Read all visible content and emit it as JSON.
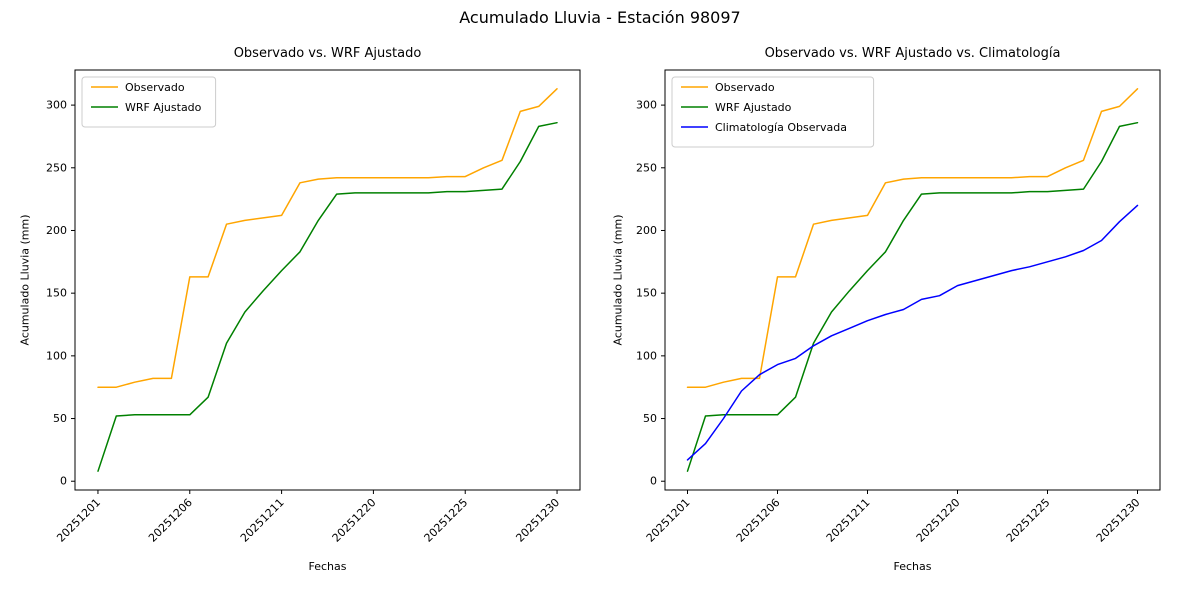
{
  "figure": {
    "title": "Acumulado Lluvia - Estación 98097",
    "background": "#ffffff"
  },
  "chart_data": [
    {
      "type": "line",
      "title": "Observado vs. WRF Ajustado",
      "xlabel": "Fechas",
      "ylabel": "Acumulado Lluvia (mm)",
      "ylim": [
        -7,
        328
      ],
      "yticks": [
        0,
        50,
        100,
        150,
        200,
        250,
        300
      ],
      "x_tick_labels": [
        "20251201",
        "20251206",
        "20251211",
        "20251220",
        "20251225",
        "20251230"
      ],
      "x_tick_indices": [
        0,
        5,
        10,
        15,
        20,
        25
      ],
      "n_points": 26,
      "x_margin": 1.25,
      "grid": false,
      "legend_position": "upper-left",
      "series": [
        {
          "name": "Observado",
          "color": "#FFA500",
          "values": [
            75,
            75,
            79,
            82,
            82,
            163,
            163,
            205,
            208,
            210,
            212,
            238,
            241,
            242,
            242,
            242,
            242,
            242,
            242,
            243,
            243,
            250,
            256,
            295,
            299,
            313
          ]
        },
        {
          "name": "WRF Ajustado",
          "color": "#008000",
          "values": [
            8,
            52,
            53,
            53,
            53,
            53,
            67,
            110,
            135,
            152,
            168,
            183,
            208,
            229,
            230,
            230,
            230,
            230,
            230,
            231,
            231,
            232,
            233,
            255,
            283,
            286
          ]
        }
      ]
    },
    {
      "type": "line",
      "title": "Observado vs. WRF Ajustado vs. Climatología",
      "xlabel": "Fechas",
      "ylabel": "Acumulado Lluvia (mm)",
      "ylim": [
        -7,
        328
      ],
      "yticks": [
        0,
        50,
        100,
        150,
        200,
        250,
        300
      ],
      "x_tick_labels": [
        "20251201",
        "20251206",
        "20251211",
        "20251220",
        "20251225",
        "20251230"
      ],
      "x_tick_indices": [
        0,
        5,
        10,
        15,
        20,
        25
      ],
      "n_points": 26,
      "x_margin": 1.25,
      "grid": false,
      "legend_position": "upper-left",
      "series": [
        {
          "name": "Observado",
          "color": "#FFA500",
          "values": [
            75,
            75,
            79,
            82,
            82,
            163,
            163,
            205,
            208,
            210,
            212,
            238,
            241,
            242,
            242,
            242,
            242,
            242,
            242,
            243,
            243,
            250,
            256,
            295,
            299,
            313
          ]
        },
        {
          "name": "WRF Ajustado",
          "color": "#008000",
          "values": [
            8,
            52,
            53,
            53,
            53,
            53,
            67,
            110,
            135,
            152,
            168,
            183,
            208,
            229,
            230,
            230,
            230,
            230,
            230,
            231,
            231,
            232,
            233,
            255,
            283,
            286
          ]
        },
        {
          "name": "Climatología Observada",
          "color": "#0000FF",
          "values": [
            17,
            30,
            50,
            72,
            85,
            93,
            98,
            108,
            116,
            122,
            128,
            133,
            137,
            145,
            148,
            156,
            160,
            164,
            168,
            171,
            175,
            179,
            184,
            192,
            207,
            220
          ]
        }
      ]
    }
  ]
}
